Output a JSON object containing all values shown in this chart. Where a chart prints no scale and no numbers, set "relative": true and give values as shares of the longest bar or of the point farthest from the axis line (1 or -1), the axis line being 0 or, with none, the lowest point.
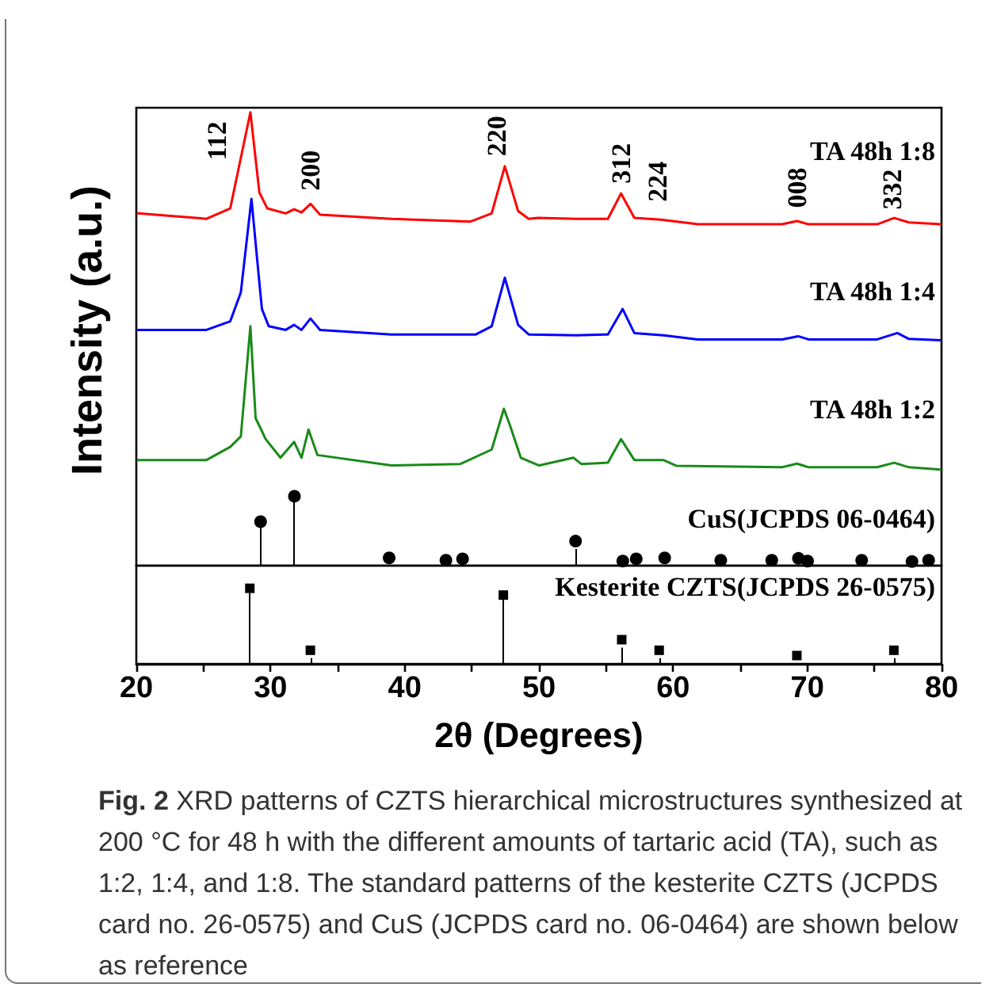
{
  "chart_data": [
    {
      "type": "line",
      "ylabel": "Intensity (a.u.)",
      "xlim": [
        20,
        80
      ],
      "relative": true,
      "tick_labels": false,
      "marker": "none",
      "line_style": "solid",
      "annotations": [
        {
          "text": "112",
          "x": 28.5,
          "y": 1.0
        },
        {
          "text": "200",
          "x": 32.98,
          "y": 0.798
        },
        {
          "text": "220",
          "x": 47.46,
          "y": 0.881
        },
        {
          "text": "312",
          "x": 56.12,
          "y": 0.821
        },
        {
          "text": "224",
          "x": 59.08,
          "y": 0.763
        },
        {
          "text": "008",
          "x": 69.23,
          "y": 0.76
        },
        {
          "text": "332",
          "x": 76.47,
          "y": 0.767
        }
      ],
      "series": [
        {
          "name": "TA 48h 1:8",
          "color": "#ff0000",
          "x": [
            20.11,
            25.23,
            27.0,
            28.5,
            29.17,
            29.76,
            31.13,
            31.76,
            32.31,
            32.98,
            33.69,
            39.0,
            44.91,
            46.48,
            47.46,
            48.45,
            49.24,
            49.94,
            52.78,
            55.14,
            56.12,
            57.11,
            59.08,
            61.83,
            68.13,
            69.23,
            70.09,
            75.21,
            76.47,
            77.57,
            79.93
          ],
          "values": [
            0.777,
            0.765,
            0.788,
            1.0,
            0.823,
            0.788,
            0.777,
            0.786,
            0.779,
            0.798,
            0.774,
            0.765,
            0.759,
            0.777,
            0.881,
            0.782,
            0.765,
            0.767,
            0.765,
            0.765,
            0.821,
            0.767,
            0.763,
            0.753,
            0.753,
            0.76,
            0.753,
            0.753,
            0.767,
            0.757,
            0.753
          ]
        },
        {
          "name": "TA 48h 1:4",
          "color": "#0000ff",
          "x": [
            20.11,
            25.23,
            27.0,
            27.79,
            28.58,
            29.09,
            29.36,
            29.87,
            31.13,
            31.76,
            32.31,
            32.98,
            33.69,
            39.0,
            45.3,
            46.48,
            47.46,
            48.45,
            49.24,
            52.78,
            55.14,
            56.24,
            57.11,
            59.27,
            61.83,
            68.13,
            69.31,
            70.09,
            75.21,
            76.71,
            77.57,
            79.93
          ],
          "values": [
            0.52,
            0.52,
            0.539,
            0.603,
            0.809,
            0.649,
            0.566,
            0.528,
            0.52,
            0.531,
            0.52,
            0.545,
            0.52,
            0.51,
            0.51,
            0.528,
            0.635,
            0.531,
            0.51,
            0.508,
            0.51,
            0.566,
            0.513,
            0.508,
            0.499,
            0.499,
            0.506,
            0.499,
            0.499,
            0.513,
            0.5,
            0.497
          ]
        },
        {
          "name": "TA 48h 1:2",
          "color": "#1a8a1a",
          "x": [
            20.11,
            25.23,
            27.0,
            27.79,
            28.5,
            28.89,
            29.24,
            29.64,
            30.74,
            31.76,
            32.31,
            32.83,
            33.49,
            39.0,
            44.12,
            46.48,
            47.39,
            47.86,
            48.65,
            50.02,
            52.58,
            53.17,
            55.14,
            56.12,
            57.11,
            59.27,
            60.26,
            68.13,
            69.23,
            70.09,
            75.21,
            76.47,
            77.57,
            79.93
          ],
          "values": [
            0.233,
            0.233,
            0.262,
            0.285,
            0.528,
            0.325,
            0.304,
            0.279,
            0.238,
            0.273,
            0.238,
            0.3,
            0.244,
            0.221,
            0.224,
            0.256,
            0.346,
            0.308,
            0.238,
            0.221,
            0.238,
            0.224,
            0.227,
            0.279,
            0.233,
            0.233,
            0.22,
            0.217,
            0.225,
            0.217,
            0.217,
            0.227,
            0.217,
            0.212
          ]
        },
        {
          "name": "CuS(JCPDS 06-0464)",
          "type": "lollipop",
          "marker": "circle",
          "color": "#000000",
          "x": [
            29.26,
            31.78,
            38.84,
            43.07,
            44.31,
            52.73,
            56.25,
            57.25,
            59.37,
            63.55,
            67.35,
            69.34,
            70.02,
            74.05,
            77.8,
            79.04
          ],
          "values": [
            0.097,
            0.153,
            0.017,
            0.012,
            0.015,
            0.054,
            0.01,
            0.015,
            0.017,
            0.012,
            0.012,
            0.016,
            0.01,
            0.012,
            0.009,
            0.012
          ]
        }
      ]
    },
    {
      "type": "lollipop",
      "xlabel": "2θ (Degrees)",
      "xlim": [
        20,
        80
      ],
      "xticks": [
        20,
        {
          "value": 25,
          "label": null
        },
        30,
        {
          "value": 35,
          "label": null
        },
        40,
        {
          "value": 45,
          "label": null
        },
        50,
        {
          "value": 55,
          "label": null
        },
        60,
        {
          "value": 65,
          "label": null
        },
        70,
        {
          "value": 75,
          "label": null
        },
        80
      ],
      "relative": true,
      "tick_labels": "x",
      "marker": "square",
      "annotations": [
        "Fig. 2",
        "XRD patterns of CZTS hierarchical microstructures synthesized at 200 °C for 48 h with the different amounts of tartaric acid (TA), such as 1:2, 1:4, and 1:8. The standard patterns of the kesterite CZTS (JCPDS card no. 26-0575) and CuS (JCPDS card no. 06-0464) are shown below as reference"
      ],
      "series": [
        {
          "name": "Kesterite CZTS(JCPDS 26-0575)",
          "color": "#000000",
          "x": [
            28.46,
            32.97,
            47.35,
            56.17,
            58.96,
            69.22,
            76.45
          ],
          "values": [
            1,
            0.18,
            0.91,
            0.32,
            0.18,
            0.11,
            0.18
          ]
        }
      ]
    }
  ]
}
